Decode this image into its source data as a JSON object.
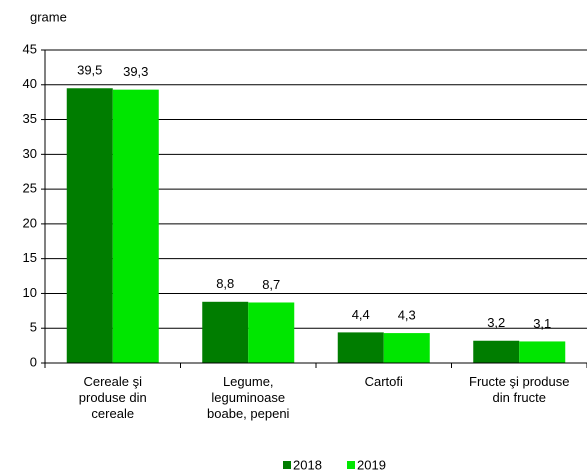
{
  "chart_data": {
    "type": "bar",
    "ylabel": "grame",
    "categories": [
      [
        "Cereale şi",
        "produse din",
        "cereale"
      ],
      [
        "Legume,",
        "leguminoase",
        "boabe, pepeni"
      ],
      [
        "Cartofi"
      ],
      [
        "Fructe şi produse",
        "din fructe"
      ]
    ],
    "series": [
      {
        "name": "2018",
        "color": "#007d00",
        "values": [
          39.5,
          8.8,
          4.4,
          3.2
        ],
        "value_labels": [
          "39,5",
          "8,8",
          "4,4",
          "3,2"
        ]
      },
      {
        "name": "2019",
        "color": "#00e600",
        "values": [
          39.3,
          8.7,
          4.3,
          3.1
        ],
        "value_labels": [
          "39,3",
          "8,7",
          "4,3",
          "3,1"
        ]
      }
    ],
    "ylim": [
      0,
      45
    ],
    "yticks": [
      0,
      5,
      10,
      15,
      20,
      25,
      30,
      35,
      40,
      45
    ],
    "grid": true
  }
}
